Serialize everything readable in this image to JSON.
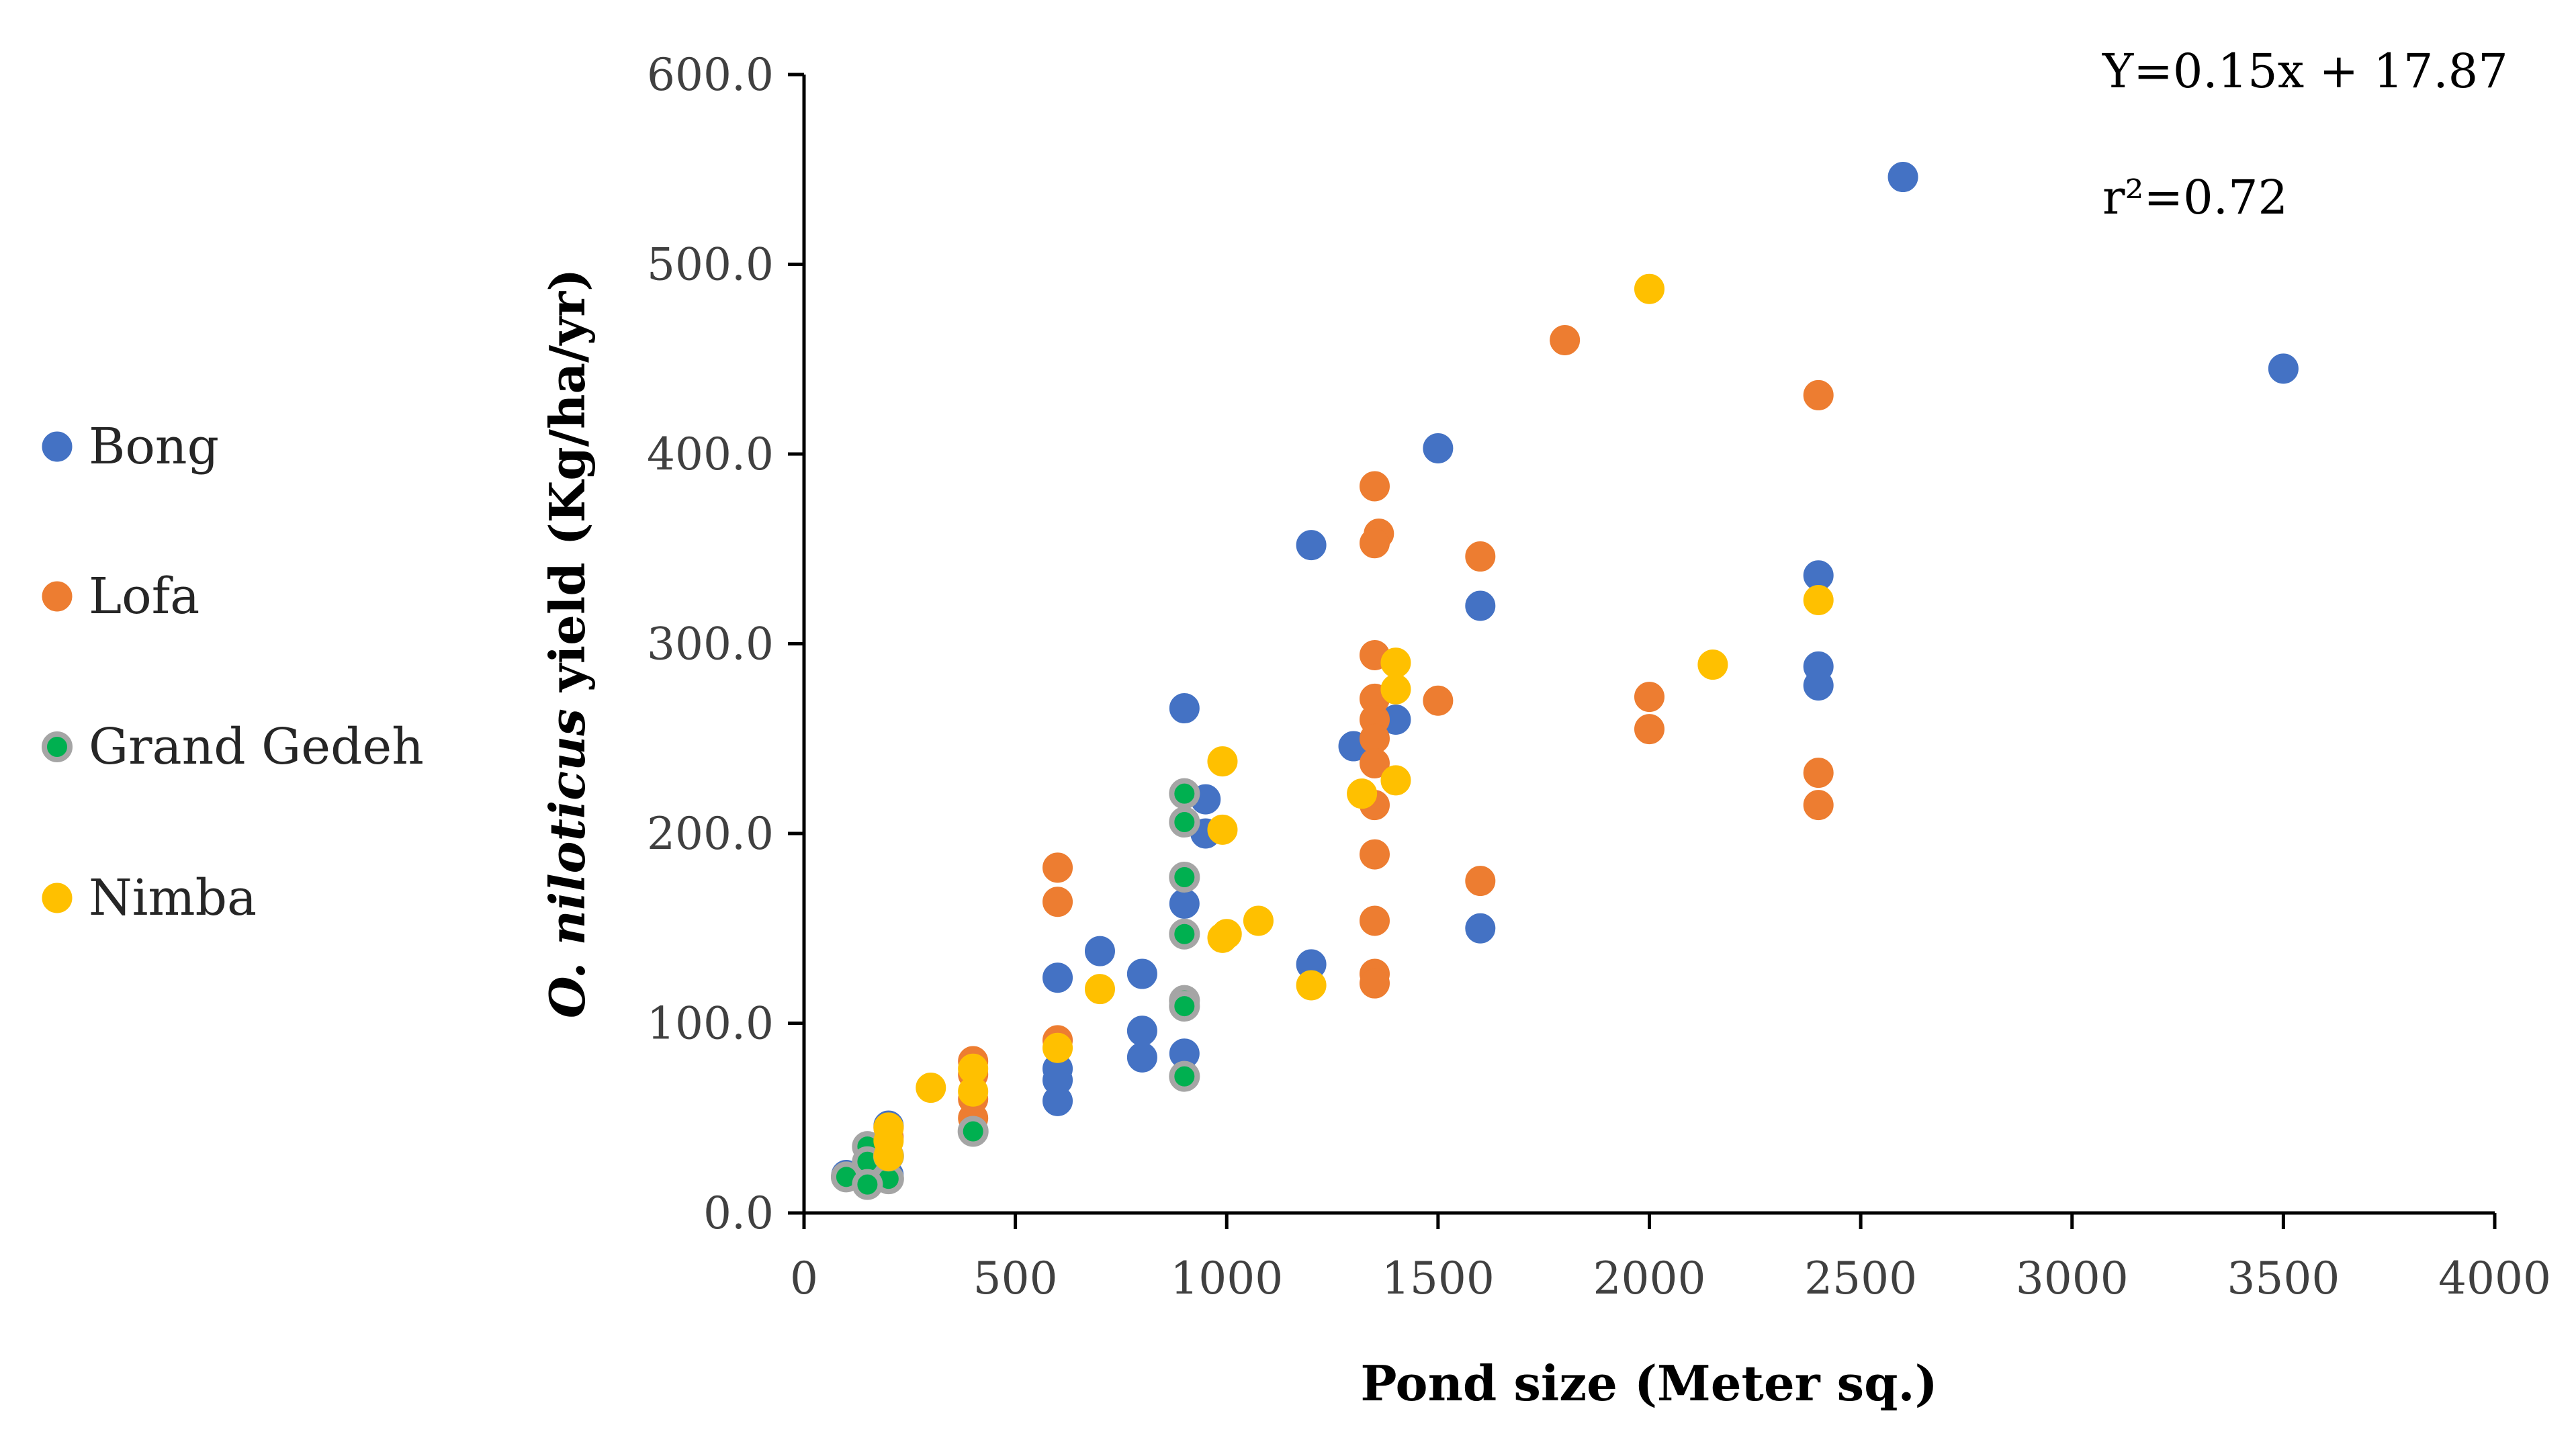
{
  "chart_data": {
    "type": "scatter",
    "title": "",
    "xlabel": "Pond size (Meter sq.)",
    "ylabel_italic": "O. niloticus",
    "ylabel_rest": " yield (Kg/ha/yr)",
    "xlim": [
      0,
      4000
    ],
    "ylim": [
      0,
      600
    ],
    "x_ticks": [
      "0",
      "500",
      "1000",
      "1500",
      "2000",
      "2500",
      "3000",
      "3500",
      "4000"
    ],
    "y_ticks": [
      "0.0",
      "100.0",
      "200.0",
      "300.0",
      "400.0",
      "500.0",
      "600.0"
    ],
    "x_tick_values": [
      0,
      500,
      1000,
      1500,
      2000,
      2500,
      3000,
      3500,
      4000
    ],
    "y_tick_values": [
      0,
      100,
      200,
      300,
      400,
      500,
      600
    ],
    "grid": false,
    "legend_position": "left",
    "annotations": [
      "Y=0.15x + 17.87",
      "r²=0.72"
    ],
    "series": [
      {
        "name": "Bong",
        "color": "#4472C4",
        "stroke": "#4472C4",
        "points": [
          [
            2600,
            546
          ],
          [
            3500,
            445
          ],
          [
            1500,
            403
          ],
          [
            1200,
            352
          ],
          [
            2400,
            336
          ],
          [
            1600,
            320
          ],
          [
            2400,
            288
          ],
          [
            2400,
            278
          ],
          [
            900,
            266
          ],
          [
            1300,
            246
          ],
          [
            1400,
            260
          ],
          [
            950,
            218
          ],
          [
            950,
            200
          ],
          [
            900,
            163
          ],
          [
            1600,
            150
          ],
          [
            700,
            138
          ],
          [
            1200,
            131
          ],
          [
            800,
            126
          ],
          [
            600,
            124
          ],
          [
            800,
            96
          ],
          [
            900,
            84
          ],
          [
            800,
            82
          ],
          [
            600,
            76
          ],
          [
            600,
            70
          ],
          [
            600,
            59
          ],
          [
            200,
            46
          ],
          [
            200,
            30
          ],
          [
            150,
            24
          ],
          [
            200,
            20
          ],
          [
            150,
            16
          ],
          [
            100,
            20
          ]
        ]
      },
      {
        "name": "Lofa",
        "color": "#ED7D31",
        "stroke": "#ED7D31",
        "points": [
          [
            1800,
            460
          ],
          [
            2400,
            431
          ],
          [
            1350,
            383
          ],
          [
            1360,
            358
          ],
          [
            1350,
            353
          ],
          [
            1600,
            346
          ],
          [
            1350,
            294
          ],
          [
            1350,
            271
          ],
          [
            1500,
            270
          ],
          [
            2000,
            272
          ],
          [
            1350,
            260
          ],
          [
            1350,
            250
          ],
          [
            2000,
            255
          ],
          [
            1350,
            237
          ],
          [
            2400,
            232
          ],
          [
            1350,
            215
          ],
          [
            2400,
            215
          ],
          [
            1350,
            189
          ],
          [
            600,
            182
          ],
          [
            1600,
            175
          ],
          [
            600,
            164
          ],
          [
            1350,
            154
          ],
          [
            1350,
            126
          ],
          [
            1350,
            121
          ],
          [
            600,
            91
          ],
          [
            400,
            80
          ],
          [
            400,
            73
          ],
          [
            400,
            60
          ],
          [
            400,
            50
          ],
          [
            200,
            45
          ],
          [
            200,
            40
          ]
        ]
      },
      {
        "name": "Grand Gedeh",
        "color": "#00B050",
        "stroke": "#A5A5A5",
        "points": [
          [
            900,
            221
          ],
          [
            900,
            206
          ],
          [
            900,
            177
          ],
          [
            900,
            147
          ],
          [
            900,
            112
          ],
          [
            900,
            109
          ],
          [
            900,
            72
          ],
          [
            400,
            43
          ],
          [
            150,
            35
          ],
          [
            150,
            27
          ],
          [
            200,
            18
          ],
          [
            100,
            19
          ],
          [
            150,
            15
          ],
          [
            200,
            30
          ]
        ]
      },
      {
        "name": "Nimba",
        "color": "#FFC000",
        "stroke": "#FFC000",
        "points": [
          [
            2000,
            487
          ],
          [
            2400,
            323
          ],
          [
            1400,
            290
          ],
          [
            1400,
            276
          ],
          [
            2150,
            289
          ],
          [
            990,
            238
          ],
          [
            1400,
            228
          ],
          [
            1320,
            221
          ],
          [
            990,
            202
          ],
          [
            1075,
            154
          ],
          [
            1000,
            147
          ],
          [
            990,
            145
          ],
          [
            700,
            118
          ],
          [
            1200,
            120
          ],
          [
            600,
            87
          ],
          [
            400,
            76
          ],
          [
            400,
            64
          ],
          [
            300,
            66
          ],
          [
            200,
            45
          ],
          [
            200,
            38
          ],
          [
            200,
            30
          ]
        ]
      }
    ]
  }
}
